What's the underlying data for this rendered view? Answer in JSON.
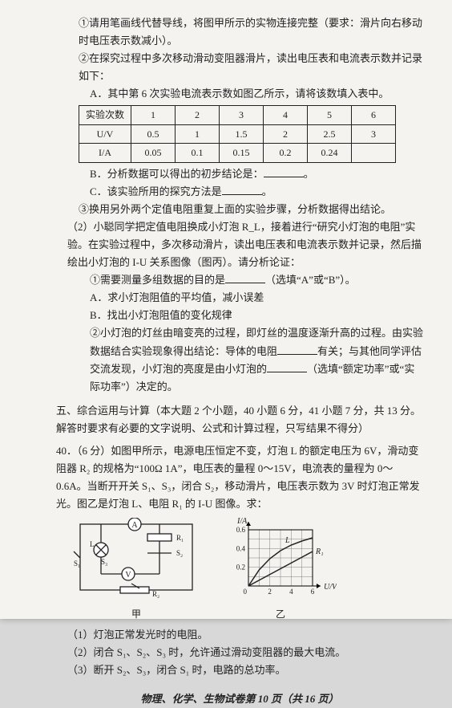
{
  "p": {
    "l1": "①请用笔画线代替导线，将图甲所示的实物连接完整（要求：滑片向右移动时电压表示数减小）。",
    "l2": "②在探究过程中多次移动滑动变阻器滑片，读出电压表和电流表示数并记录如下：",
    "l3": "A．其中第 6 次实验电流表示数如图乙所示，请将该数填入表中。",
    "l4": "B．分析数据可以得出的初步结论是：",
    "l5": "C．该实验所用的探究方法是",
    "l6": "③换用另外两个定值电阻重复上面的实验步骤，分析数据得出结论。",
    "l7": "（2）小聪同学把定值电阻换成小灯泡 R_L，接着进行“研究小灯泡的电阻”实验。在实验过程中，多次移动滑片，读出电压表和电流表示数并记录，然后描绘出小灯泡的 I-U 关系图像（图丙）。请分析论证：",
    "l8": "①需要测量多组数据的目的是",
    "l8b": "（选填“A”或“B”）。",
    "l9": "A．求小灯泡阻值的平均值，减小误差",
    "l10": "B．找出小灯泡阻值的变化规律",
    "l11": "②小灯泡的灯丝由暗变亮的过程，即灯丝的温度逐渐升高的过程。由实验数据结合实验现象得出结论：导体的电阻",
    "l11b": "有关；与其他同学评估交流发现，小灯泡的亮度是由小灯泡的",
    "l11c": "（选填“额定功率”或“实际功率”）决定的。"
  },
  "table": {
    "rows": [
      [
        "实验次数",
        "1",
        "2",
        "3",
        "4",
        "5",
        "6"
      ],
      [
        "U/V",
        "0.5",
        "1",
        "1.5",
        "2",
        "2.5",
        "3"
      ],
      [
        "I/A",
        "0.05",
        "0.1",
        "0.15",
        "0.2",
        "0.24",
        ""
      ]
    ]
  },
  "sec5": {
    "title": "五、综合运用与计算（本大题 2 个小题，40 小题 6 分，41 小题 7 分，共 13 分。解答时要求有必要的文字说明、公式和计算过程，只写结果不得分）",
    "q40": "40．（6 分）如图甲所示，电源电压恒定不变，灯泡 L 的额定电压为 6V，滑动变阻器 R₂ 的规格为“100Ω 1A”，电压表的量程 0～15V，电流表的量程为 0～0.6A。当断开开关 S₁、S₃，闭合 S₂，移动滑片，电压表示数为 3V 时灯泡正常发光。图乙是灯泡 L、电阻 R₁ 的 I-U 图像。求：",
    "q40_1": "（1）灯泡正常发光时的电阻。",
    "q40_2": "（2）闭合 S₁、S₂、S₃ 时，允许通过滑动变阻器的最大电流。",
    "q40_3": "（3）断开 S₂、S₃，闭合 S₁ 时，电路的总功率。",
    "cap1": "甲",
    "cap2": "乙"
  },
  "chart": {
    "ylabel": "I/A",
    "xlabel": "U/V",
    "yticks": [
      "0.2",
      "0.4",
      "0.6"
    ],
    "xticks": [
      "2",
      "4",
      "6"
    ],
    "curve_label": "L",
    "line_label": "R₁",
    "grid_color": "#666",
    "axis_color": "#000",
    "curveL": [
      [
        0,
        0
      ],
      [
        12,
        20
      ],
      [
        24,
        34
      ],
      [
        36,
        44
      ],
      [
        48,
        51
      ],
      [
        60,
        56
      ],
      [
        72,
        60
      ]
    ],
    "lineR": [
      [
        0,
        0
      ],
      [
        72,
        43
      ]
    ]
  },
  "footer": "物理、化学、生物试卷第 10 页（共 16 页）"
}
